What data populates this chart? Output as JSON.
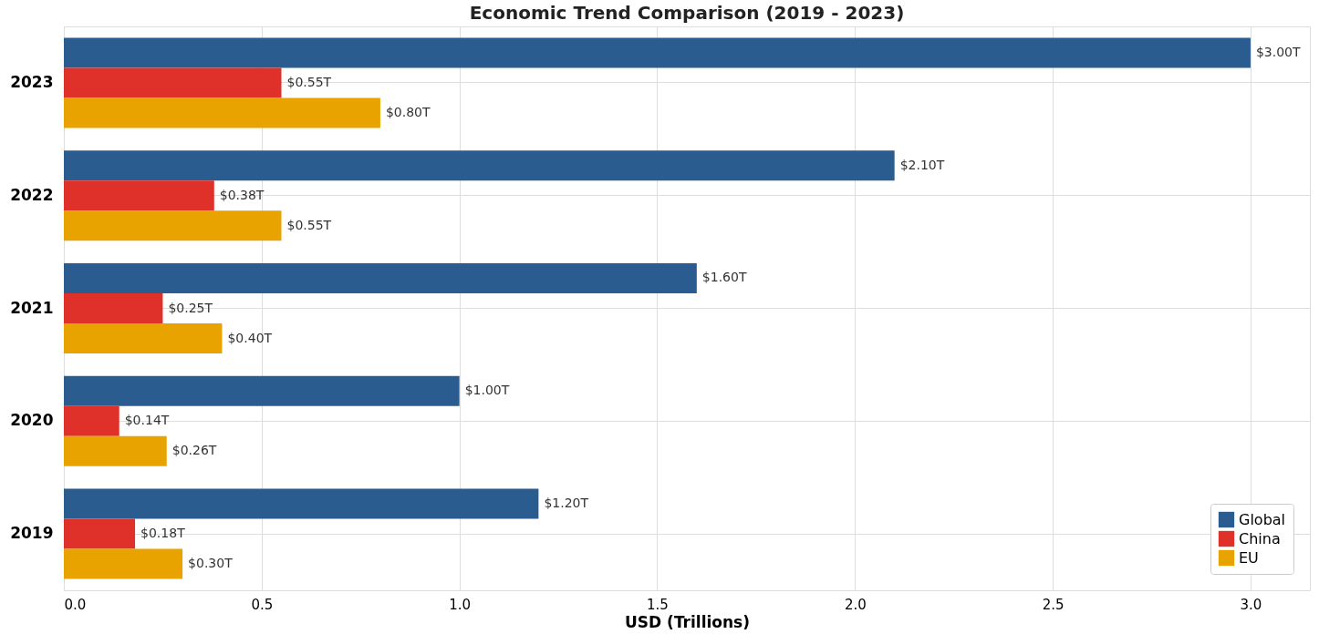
{
  "chart_data": {
    "type": "bar",
    "orientation": "horizontal",
    "title": "Economic Trend Comparison (2019 - 2023)",
    "xlabel": "USD (Trillions)",
    "categories": [
      "2023",
      "2022",
      "2021",
      "2020",
      "2019"
    ],
    "series": [
      {
        "name": "Global",
        "color": "#2b5c8f",
        "values": [
          3.0,
          2.1,
          1.6,
          1.0,
          1.2
        ],
        "value_labels": [
          "$3.00T",
          "$2.10T",
          "$1.60T",
          "$1.00T",
          "$1.20T"
        ]
      },
      {
        "name": "China",
        "color": "#e0302a",
        "values": [
          0.55,
          0.38,
          0.25,
          0.14,
          0.18
        ],
        "value_labels": [
          "$0.55T",
          "$0.38T",
          "$0.25T",
          "$0.14T",
          "$0.18T"
        ]
      },
      {
        "name": "EU",
        "color": "#e8a300",
        "values": [
          0.8,
          0.55,
          0.4,
          0.26,
          0.3
        ],
        "value_labels": [
          "$0.80T",
          "$0.55T",
          "$0.40T",
          "$0.26T",
          "$0.30T"
        ]
      }
    ],
    "xlim": [
      0,
      3.15
    ],
    "xticks": [
      {
        "value": 0,
        "label": "0.0"
      },
      {
        "value": 0.5,
        "label": "0.5"
      },
      {
        "value": 1,
        "label": "1.0"
      },
      {
        "value": 1.5,
        "label": "1.5"
      },
      {
        "value": 2,
        "label": "2.0"
      },
      {
        "value": 2.5,
        "label": "2.5"
      },
      {
        "value": 3,
        "label": "3.0"
      }
    ],
    "grid": true,
    "legend": "bottom right"
  }
}
